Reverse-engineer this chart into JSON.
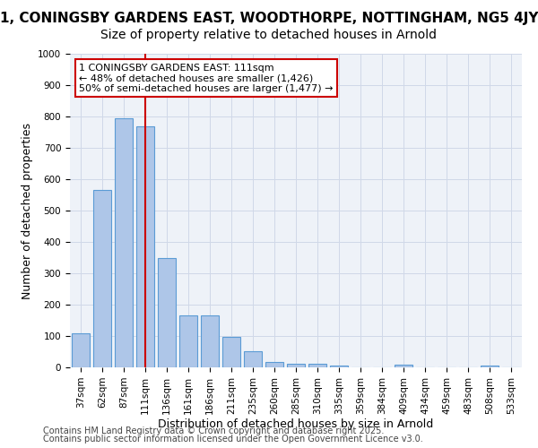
{
  "title1": "1, CONINGSBY GARDENS EAST, WOODTHORPE, NOTTINGHAM, NG5 4JY",
  "title2": "Size of property relative to detached houses in Arnold",
  "xlabel": "Distribution of detached houses by size in Arnold",
  "ylabel": "Number of detached properties",
  "categories": [
    "37sqm",
    "62sqm",
    "87sqm",
    "111sqm",
    "136sqm",
    "161sqm",
    "186sqm",
    "211sqm",
    "235sqm",
    "260sqm",
    "285sqm",
    "310sqm",
    "335sqm",
    "359sqm",
    "384sqm",
    "409sqm",
    "434sqm",
    "459sqm",
    "483sqm",
    "508sqm",
    "533sqm"
  ],
  "values": [
    110,
    565,
    795,
    770,
    350,
    165,
    165,
    97,
    52,
    18,
    12,
    12,
    7,
    0,
    0,
    8,
    0,
    0,
    0,
    5,
    0
  ],
  "bar_color": "#aec6e8",
  "bar_edgecolor": "#5b9bd5",
  "vline_idx": 3,
  "vline_color": "#cc0000",
  "annotation_text": "1 CONINGSBY GARDENS EAST: 111sqm\n← 48% of detached houses are smaller (1,426)\n50% of semi-detached houses are larger (1,477) →",
  "annotation_box_color": "#ffffff",
  "annotation_box_edgecolor": "#cc0000",
  "ylim": [
    0,
    1000
  ],
  "yticks": [
    0,
    100,
    200,
    300,
    400,
    500,
    600,
    700,
    800,
    900,
    1000
  ],
  "grid_color": "#d0d8e8",
  "bg_color": "#eef2f8",
  "footer1": "Contains HM Land Registry data © Crown copyright and database right 2025.",
  "footer2": "Contains public sector information licensed under the Open Government Licence v3.0.",
  "title1_fontsize": 11,
  "title2_fontsize": 10,
  "xlabel_fontsize": 9,
  "ylabel_fontsize": 9,
  "tick_fontsize": 7.5,
  "annotation_fontsize": 8,
  "footer_fontsize": 7
}
